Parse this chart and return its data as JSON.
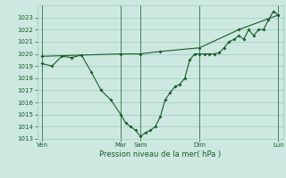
{
  "background_color": "#cce8e0",
  "grid_color": "#99ccbb",
  "line_color": "#1a5c2a",
  "xlabel": "Pression niveau de la mer( hPa )",
  "ylim": [
    1013,
    1024
  ],
  "yticks": [
    1013,
    1014,
    1015,
    1016,
    1017,
    1018,
    1019,
    1020,
    1021,
    1022,
    1023
  ],
  "xtick_labels": [
    "Ven",
    "Mar",
    "Sam",
    "Dim",
    "Lun"
  ],
  "xtick_positions": [
    0,
    16,
    20,
    32,
    48
  ],
  "vline_positions": [
    0,
    16,
    20,
    32,
    48
  ],
  "line1_x": [
    0,
    2,
    4,
    6,
    8,
    10,
    12,
    14,
    16,
    17,
    18,
    19,
    20,
    21,
    22,
    23,
    24,
    25,
    26,
    27,
    28,
    29,
    30,
    31,
    32,
    33,
    34,
    35,
    36,
    37,
    38,
    39,
    40,
    41,
    42,
    43,
    44,
    45,
    46,
    47,
    48
  ],
  "line1_y": [
    1019.2,
    1019.0,
    1019.8,
    1019.7,
    1019.9,
    1018.5,
    1017.0,
    1016.2,
    1015.0,
    1014.3,
    1014.0,
    1013.7,
    1013.2,
    1013.5,
    1013.7,
    1014.0,
    1014.8,
    1016.2,
    1016.8,
    1017.3,
    1017.5,
    1018.0,
    1019.5,
    1020.0,
    1020.0,
    1020.0,
    1020.0,
    1020.0,
    1020.1,
    1020.5,
    1021.0,
    1021.2,
    1021.5,
    1021.2,
    1022.0,
    1021.5,
    1022.0,
    1022.0,
    1022.8,
    1023.5,
    1023.2
  ],
  "line2_x": [
    0,
    16,
    20,
    24,
    32,
    40,
    48
  ],
  "line2_y": [
    1019.8,
    1020.0,
    1020.0,
    1020.2,
    1020.5,
    1022.0,
    1023.2
  ],
  "marker_size": 2.0,
  "linewidth": 0.8,
  "tick_fontsize": 5.0,
  "xlabel_fontsize": 6.0
}
